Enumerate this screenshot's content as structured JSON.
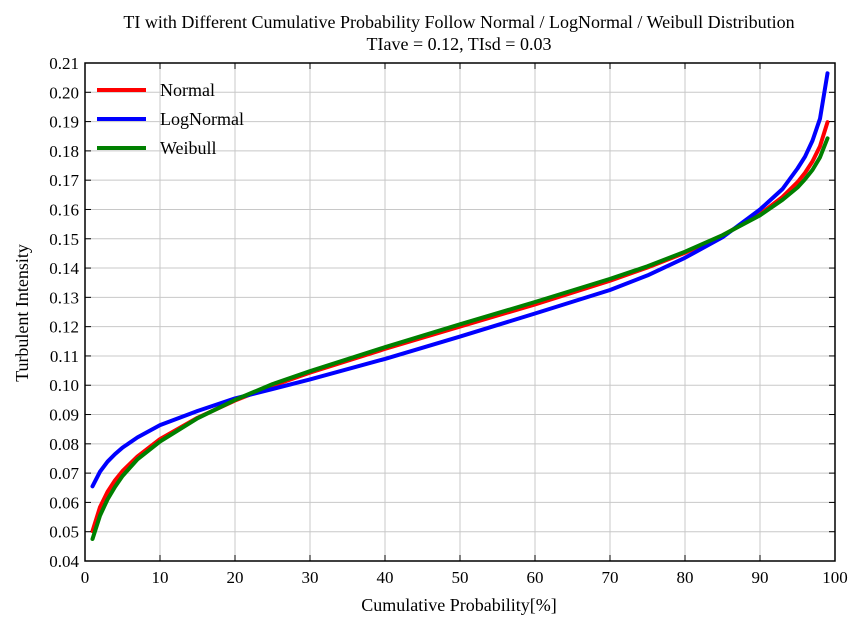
{
  "chart_data": {
    "type": "line",
    "title": "TI with Different Cumulative Probability Follow Normal / LogNormal / Weibull Distribution",
    "subtitle": "TIave = 0.12, TIsd = 0.03",
    "xlabel": "Cumulative Probability[%]",
    "ylabel": "Turbulent Intensity",
    "xlim": [
      0,
      100
    ],
    "ylim": [
      0.04,
      0.21
    ],
    "xticks": [
      "0",
      "10",
      "20",
      "30",
      "40",
      "50",
      "60",
      "70",
      "80",
      "90",
      "100"
    ],
    "yticks": [
      "0.04",
      "0.05",
      "0.06",
      "0.07",
      "0.08",
      "0.09",
      "0.10",
      "0.11",
      "0.12",
      "0.13",
      "0.14",
      "0.15",
      "0.16",
      "0.17",
      "0.18",
      "0.19",
      "0.20",
      "0.21"
    ],
    "grid": true,
    "legend_position": "top-left",
    "x": [
      1,
      2,
      3,
      4,
      5,
      7,
      10,
      15,
      20,
      25,
      30,
      40,
      50,
      60,
      70,
      75,
      80,
      85,
      90,
      93,
      95,
      96,
      97,
      98,
      99
    ],
    "series": [
      {
        "name": "Normal",
        "color": "#ff0000",
        "values": [
          0.0502,
          0.0584,
          0.0636,
          0.0675,
          0.0707,
          0.0757,
          0.0816,
          0.0889,
          0.0948,
          0.0998,
          0.1043,
          0.1124,
          0.12,
          0.1276,
          0.1357,
          0.1402,
          0.1452,
          0.1511,
          0.1584,
          0.1643,
          0.1693,
          0.1725,
          0.1764,
          0.1816,
          0.1898
        ]
      },
      {
        "name": "LogNormal",
        "color": "#0000ff",
        "values": [
          0.0655,
          0.0705,
          0.0739,
          0.0765,
          0.0787,
          0.0822,
          0.0864,
          0.0912,
          0.0955,
          0.0987,
          0.102,
          0.109,
          0.1166,
          0.1245,
          0.1325,
          0.1375,
          0.1435,
          0.1505,
          0.16,
          0.167,
          0.174,
          0.178,
          0.1835,
          0.191,
          0.2065
        ]
      },
      {
        "name": "Weibull",
        "color": "#008000",
        "values": [
          0.0475,
          0.0555,
          0.061,
          0.0653,
          0.069,
          0.0747,
          0.0808,
          0.0887,
          0.095,
          0.1004,
          0.1048,
          0.113,
          0.1208,
          0.1284,
          0.1363,
          0.1406,
          0.1456,
          0.1512,
          0.158,
          0.1633,
          0.1675,
          0.1703,
          0.1735,
          0.1778,
          0.1843
        ]
      }
    ]
  }
}
